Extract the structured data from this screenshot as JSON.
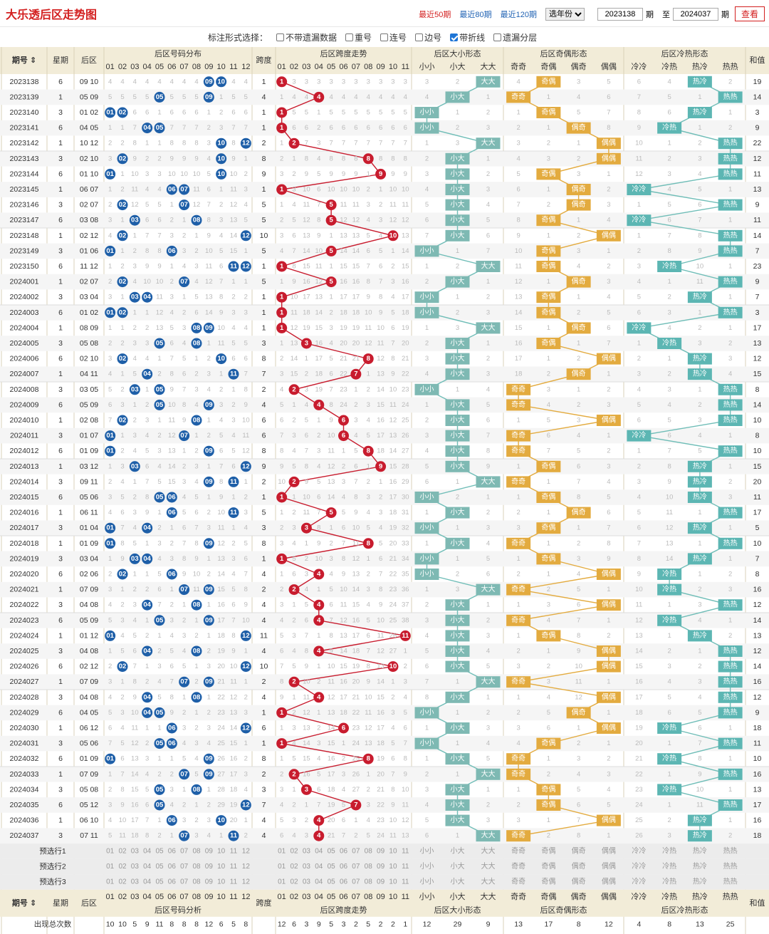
{
  "title": "大乐透后区走势图",
  "links": [
    "最近50期",
    "最近80期",
    "最近120期"
  ],
  "year_select": "选年份",
  "from_issue": "2023138",
  "to_issue": "2024037",
  "label_qi": "期",
  "label_zhi": "至",
  "query_label": "查看",
  "annotation_label": "标注形式选择：",
  "options": [
    {
      "label": "不带遗漏数据",
      "checked": false
    },
    {
      "label": "重号",
      "checked": false
    },
    {
      "label": "连号",
      "checked": false
    },
    {
      "label": "边号",
      "checked": false
    },
    {
      "label": "带折线",
      "checked": true
    },
    {
      "label": "遗漏分层",
      "checked": false
    }
  ],
  "colors": {
    "header_bg": "#f2ecd8",
    "header_border": "#d9d2b8",
    "alt_row": "#f5f5f5",
    "ball_blue": "#1e5fa8",
    "ball_red": "#c81c2e",
    "size_bg": "#7eb9b3",
    "oddeven_bg": "#e3ab3f",
    "hot_bg": "#5cb6b3",
    "line_red": "#c81c2e",
    "line_orange": "#e3ab3f",
    "line_teal": "#6fbdb7",
    "miss_text": "#bbbbbb",
    "title_red": "#d31f1f"
  },
  "headers": {
    "issue": "期号",
    "week": "星期",
    "back": "后区",
    "dist": "后区号码分布",
    "span": "跨度",
    "span_trend": "后区跨度走势",
    "size": "后区大小形态",
    "oe": "后区奇偶形态",
    "hc": "后区冷热形态",
    "sum": "和值"
  },
  "dist_labels": [
    "01",
    "02",
    "03",
    "04",
    "05",
    "06",
    "07",
    "08",
    "09",
    "10",
    "11",
    "12"
  ],
  "span_labels": [
    "01",
    "02",
    "03",
    "04",
    "05",
    "06",
    "07",
    "08",
    "09",
    "10",
    "11"
  ],
  "size_labels": [
    "小小",
    "小大",
    "大大"
  ],
  "oe_labels": [
    "奇奇",
    "奇偶",
    "偶奇",
    "偶偶"
  ],
  "hc_labels": [
    "冷冷",
    "冷热",
    "热冷",
    "热热"
  ],
  "footer": {
    "analysis_dist": "后区号码分析",
    "count_label": "出现总次数",
    "dist_counts": [
      10,
      10,
      5,
      9,
      11,
      8,
      8,
      8,
      12,
      6,
      5,
      8
    ],
    "span_counts": [
      12,
      6,
      3,
      9,
      5,
      3,
      2,
      5,
      2,
      2,
      1
    ],
    "size_counts": [
      12,
      29,
      9
    ],
    "oe_counts": [
      13,
      17,
      8,
      12
    ],
    "hc_counts": [
      4,
      8,
      13,
      25
    ]
  },
  "preselect_rows": [
    "预选行1",
    "预选行2",
    "预选行3"
  ],
  "rows": [
    {
      "issue": "2023138",
      "week": "6",
      "back": "09 10",
      "span": 1,
      "size": "大大",
      "oe": "奇偶",
      "hc": "热冷",
      "sum": "19"
    },
    {
      "issue": "2023139",
      "week": "1",
      "back": "05 09",
      "span": 4,
      "size": "小大",
      "oe": "奇奇",
      "hc": "热热",
      "sum": "14"
    },
    {
      "issue": "2023140",
      "week": "3",
      "back": "01 02",
      "span": 1,
      "size": "小小",
      "oe": "奇偶",
      "hc": "热冷",
      "sum": "3"
    },
    {
      "issue": "2023141",
      "week": "6",
      "back": "04 05",
      "span": 1,
      "size": "小小",
      "oe": "偶奇",
      "hc": "冷热",
      "sum": "9"
    },
    {
      "issue": "2023142",
      "week": "1",
      "back": "10 12",
      "span": 2,
      "size": "大大",
      "oe": "偶偶",
      "hc": "热热",
      "sum": "22"
    },
    {
      "issue": "2023143",
      "week": "3",
      "back": "02 10",
      "span": 8,
      "size": "小大",
      "oe": "偶偶",
      "hc": "热热",
      "sum": "12"
    },
    {
      "issue": "2023144",
      "week": "6",
      "back": "01 10",
      "span": 9,
      "size": "小大",
      "oe": "奇偶",
      "hc": "热热",
      "sum": "11"
    },
    {
      "issue": "2023145",
      "week": "1",
      "back": "06 07",
      "span": 1,
      "size": "小大",
      "oe": "偶奇",
      "hc": "冷冷",
      "sum": "13"
    },
    {
      "issue": "2023146",
      "week": "3",
      "back": "02 07",
      "span": 5,
      "size": "小大",
      "oe": "偶奇",
      "hc": "热热",
      "sum": "9"
    },
    {
      "issue": "2023147",
      "week": "6",
      "back": "03 08",
      "span": 5,
      "size": "小大",
      "oe": "奇偶",
      "hc": "冷冷",
      "sum": "11"
    },
    {
      "issue": "2023148",
      "week": "1",
      "back": "02 12",
      "span": 10,
      "size": "小大",
      "oe": "偶偶",
      "hc": "热热",
      "sum": "14"
    },
    {
      "issue": "2023149",
      "week": "3",
      "back": "01 06",
      "span": 5,
      "size": "小小",
      "oe": "奇偶",
      "hc": "热热",
      "sum": "7"
    },
    {
      "issue": "2023150",
      "week": "6",
      "back": "11 12",
      "span": 1,
      "size": "大大",
      "oe": "奇偶",
      "hc": "冷热",
      "sum": "23"
    },
    {
      "issue": "2024001",
      "week": "1",
      "back": "02 07",
      "span": 5,
      "size": "小大",
      "oe": "偶奇",
      "hc": "热热",
      "sum": "9"
    },
    {
      "issue": "2024002",
      "week": "3",
      "back": "03 04",
      "span": 1,
      "size": "小小",
      "oe": "奇偶",
      "hc": "热冷",
      "sum": "7"
    },
    {
      "issue": "2024003",
      "week": "6",
      "back": "01 02",
      "span": 1,
      "size": "小小",
      "oe": "奇偶",
      "hc": "热热",
      "sum": "3"
    },
    {
      "issue": "2024004",
      "week": "1",
      "back": "08 09",
      "span": 1,
      "size": "大大",
      "oe": "偶奇",
      "hc": "冷冷",
      "sum": "17"
    },
    {
      "issue": "2024005",
      "week": "3",
      "back": "05 08",
      "span": 3,
      "size": "小大",
      "oe": "奇偶",
      "hc": "冷热",
      "sum": "13"
    },
    {
      "issue": "2024006",
      "week": "6",
      "back": "02 10",
      "span": 8,
      "size": "小大",
      "oe": "偶偶",
      "hc": "热冷",
      "sum": "12"
    },
    {
      "issue": "2024007",
      "week": "1",
      "back": "04 11",
      "span": 7,
      "size": "小大",
      "oe": "偶奇",
      "hc": "热冷",
      "sum": "15"
    },
    {
      "issue": "2024008",
      "week": "3",
      "back": "03 05",
      "span": 2,
      "size": "小小",
      "oe": "奇奇",
      "hc": "热热",
      "sum": "8"
    },
    {
      "issue": "2024009",
      "week": "6",
      "back": "05 09",
      "span": 4,
      "size": "小大",
      "oe": "奇奇",
      "hc": "热热",
      "sum": "14"
    },
    {
      "issue": "2024010",
      "week": "1",
      "back": "02 08",
      "span": 6,
      "size": "小大",
      "oe": "偶偶",
      "hc": "热热",
      "sum": "10"
    },
    {
      "issue": "2024011",
      "week": "3",
      "back": "01 07",
      "span": 6,
      "size": "小大",
      "oe": "奇奇",
      "hc": "冷冷",
      "sum": "8"
    },
    {
      "issue": "2024012",
      "week": "6",
      "back": "01 09",
      "span": 8,
      "size": "小大",
      "oe": "奇奇",
      "hc": "热热",
      "sum": "10"
    },
    {
      "issue": "2024013",
      "week": "1",
      "back": "03 12",
      "span": 9,
      "size": "小大",
      "oe": "奇偶",
      "hc": "热冷",
      "sum": "15"
    },
    {
      "issue": "2024014",
      "week": "3",
      "back": "09 11",
      "span": 2,
      "size": "大大",
      "oe": "奇奇",
      "hc": "热冷",
      "sum": "20"
    },
    {
      "issue": "2024015",
      "week": "6",
      "back": "05 06",
      "span": 1,
      "size": "小小",
      "oe": "奇偶",
      "hc": "热冷",
      "sum": "11"
    },
    {
      "issue": "2024016",
      "week": "1",
      "back": "06 11",
      "span": 5,
      "size": "小大",
      "oe": "偶奇",
      "hc": "热热",
      "sum": "17"
    },
    {
      "issue": "2024017",
      "week": "3",
      "back": "01 04",
      "span": 3,
      "size": "小小",
      "oe": "奇偶",
      "hc": "热冷",
      "sum": "5"
    },
    {
      "issue": "2024018",
      "week": "1",
      "back": "01 09",
      "span": 8,
      "size": "小大",
      "oe": "奇奇",
      "hc": "热热",
      "sum": "10"
    },
    {
      "issue": "2024019",
      "week": "3",
      "back": "03 04",
      "span": 1,
      "size": "小小",
      "oe": "奇偶",
      "hc": "热冷",
      "sum": "7"
    },
    {
      "issue": "2024020",
      "week": "6",
      "back": "02 06",
      "span": 4,
      "size": "小小",
      "oe": "偶偶",
      "hc": "冷热",
      "sum": "8"
    },
    {
      "issue": "2024021",
      "week": "1",
      "back": "07 09",
      "span": 2,
      "size": "大大",
      "oe": "奇奇",
      "hc": "冷热",
      "sum": "16"
    },
    {
      "issue": "2024022",
      "week": "3",
      "back": "04 08",
      "span": 4,
      "size": "小大",
      "oe": "偶偶",
      "hc": "热热",
      "sum": "12"
    },
    {
      "issue": "2024023",
      "week": "6",
      "back": "05 09",
      "span": 4,
      "size": "小大",
      "oe": "奇奇",
      "hc": "冷热",
      "sum": "14"
    },
    {
      "issue": "2024024",
      "week": "1",
      "back": "01 12",
      "span": 11,
      "size": "小大",
      "oe": "奇偶",
      "hc": "热冷",
      "sum": "13"
    },
    {
      "issue": "2024025",
      "week": "3",
      "back": "04 08",
      "span": 4,
      "size": "小大",
      "oe": "偶偶",
      "hc": "热热",
      "sum": "12"
    },
    {
      "issue": "2024026",
      "week": "6",
      "back": "02 12",
      "span": 10,
      "size": "小大",
      "oe": "偶偶",
      "hc": "热热",
      "sum": "14"
    },
    {
      "issue": "2024027",
      "week": "1",
      "back": "07 09",
      "span": 2,
      "size": "大大",
      "oe": "奇奇",
      "hc": "热热",
      "sum": "16"
    },
    {
      "issue": "2024028",
      "week": "3",
      "back": "04 08",
      "span": 4,
      "size": "小大",
      "oe": "偶偶",
      "hc": "热热",
      "sum": "12"
    },
    {
      "issue": "2024029",
      "week": "6",
      "back": "04 05",
      "span": 1,
      "size": "小小",
      "oe": "偶奇",
      "hc": "热热",
      "sum": "9"
    },
    {
      "issue": "2024030",
      "week": "1",
      "back": "06 12",
      "span": 6,
      "size": "小大",
      "oe": "偶偶",
      "hc": "冷热",
      "sum": "18"
    },
    {
      "issue": "2024031",
      "week": "3",
      "back": "05 06",
      "span": 1,
      "size": "小小",
      "oe": "奇偶",
      "hc": "热热",
      "sum": "11"
    },
    {
      "issue": "2024032",
      "week": "6",
      "back": "01 09",
      "span": 8,
      "size": "小大",
      "oe": "奇奇",
      "hc": "冷热",
      "sum": "10"
    },
    {
      "issue": "2024033",
      "week": "1",
      "back": "07 09",
      "span": 2,
      "size": "大大",
      "oe": "奇奇",
      "hc": "热热",
      "sum": "16"
    },
    {
      "issue": "2024034",
      "week": "3",
      "back": "05 08",
      "span": 3,
      "size": "小大",
      "oe": "奇偶",
      "hc": "冷热",
      "sum": "13"
    },
    {
      "issue": "2024035",
      "week": "6",
      "back": "05 12",
      "span": 7,
      "size": "小大",
      "oe": "奇偶",
      "hc": "热热",
      "sum": "17"
    },
    {
      "issue": "2024036",
      "week": "1",
      "back": "06 10",
      "span": 4,
      "size": "小大",
      "oe": "偶偶",
      "hc": "热冷",
      "sum": "16"
    },
    {
      "issue": "2024037",
      "week": "3",
      "back": "07 11",
      "span": 4,
      "size": "大大",
      "oe": "奇奇",
      "hc": "热冷",
      "sum": "18"
    }
  ]
}
